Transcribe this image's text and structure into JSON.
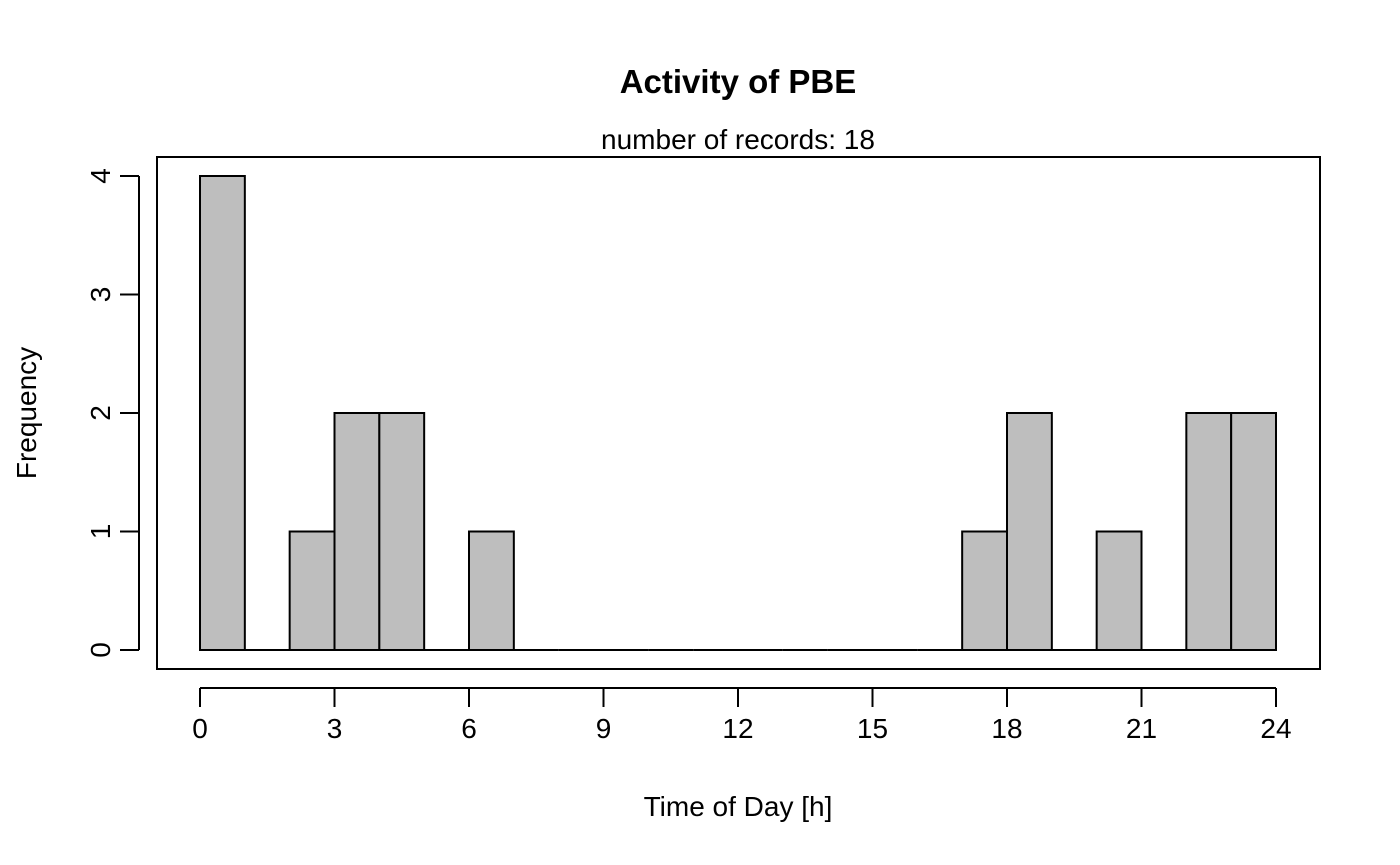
{
  "chart_data": {
    "type": "bar",
    "title": "Activity of PBE",
    "subtitle": "number of records: 18",
    "xlabel": "Time of Day [h]",
    "ylabel": "Frequency",
    "xlim": [
      -1,
      25
    ],
    "ylim": [
      0,
      4
    ],
    "x_ticks": [
      0,
      3,
      6,
      9,
      12,
      15,
      18,
      21,
      24
    ],
    "y_ticks": [
      0,
      1,
      2,
      3,
      4
    ],
    "bin_edges": [
      0,
      1,
      2,
      3,
      4,
      5,
      6,
      7,
      8,
      9,
      10,
      11,
      12,
      13,
      14,
      15,
      16,
      17,
      18,
      19,
      20,
      21,
      22,
      23,
      24
    ],
    "values": [
      4,
      0,
      1,
      2,
      2,
      0,
      1,
      0,
      0,
      0,
      0,
      0,
      0,
      0,
      0,
      0,
      0,
      1,
      2,
      0,
      1,
      0,
      2,
      2
    ],
    "bar_color": "#bebebe",
    "grid": false
  }
}
